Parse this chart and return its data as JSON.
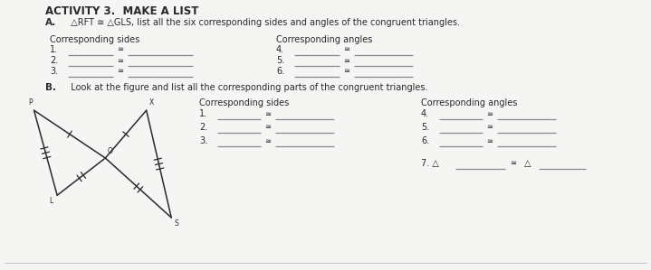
{
  "title": "ACTIVITY 3.  MAKE A LIST",
  "part_a_label": "A.",
  "part_a_text": "  △RFT ≅ △GLS, list all the six corresponding sides and angles of the congruent triangles.",
  "part_b_label": "B.",
  "part_b_text": "  Look at the figure and list all the corresponding parts of the congruent triangles.",
  "corr_sides": "Corresponding sides",
  "corr_angles": "Corresponding angles",
  "background": "#f5f5f3",
  "text_color": "#2a2a2a",
  "line_color": "#2a2a2a",
  "gray_line": "#888888",
  "cong": "≅",
  "tri": "△"
}
